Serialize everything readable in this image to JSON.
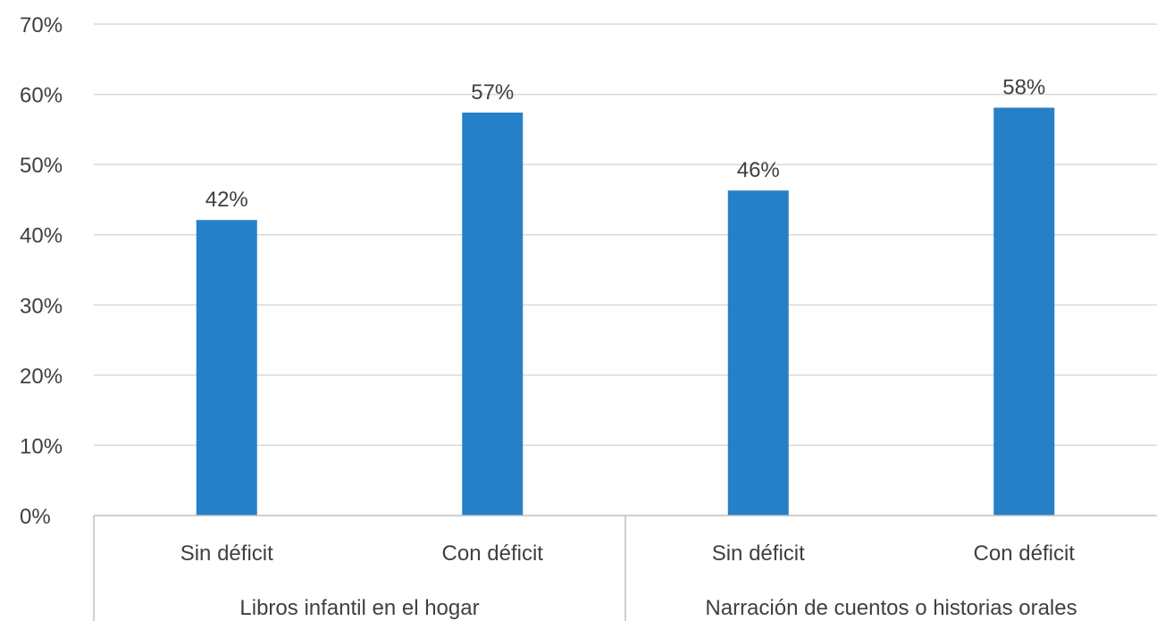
{
  "chart_data": {
    "type": "bar",
    "groups": [
      {
        "label": "Libros infantil en el hogar",
        "categories": [
          "Sin déficit",
          "Con déficit"
        ],
        "values": [
          42.1,
          57.4
        ],
        "value_labels": [
          "42%",
          "57%"
        ]
      },
      {
        "label": "Narración de cuentos o historias orales",
        "categories": [
          "Sin déficit",
          "Con déficit"
        ],
        "values": [
          46.3,
          58.1
        ],
        "value_labels": [
          "46%",
          "58%"
        ]
      }
    ],
    "ylim": [
      0,
      70
    ],
    "yticks": [
      0,
      10,
      20,
      30,
      40,
      50,
      60,
      70
    ],
    "ytick_labels": [
      "0%",
      "10%",
      "20%",
      "30%",
      "40%",
      "50%",
      "60%",
      "70%"
    ],
    "bar_color": "#2680C8",
    "grid": true,
    "title": "",
    "xlabel": "",
    "ylabel": ""
  }
}
